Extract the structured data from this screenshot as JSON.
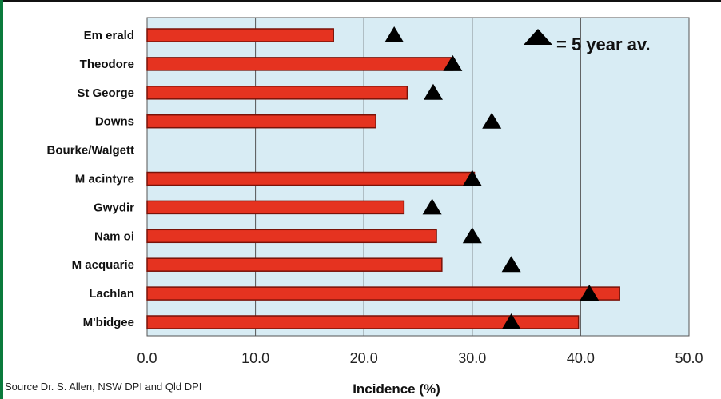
{
  "source": "Source Dr. S. Allen, NSW DPI and Qld DPI",
  "legend": {
    "marker": "triangle",
    "text": "= 5 year av."
  },
  "colors": {
    "bar": "#e53320",
    "bar_edge": "#7a1208",
    "plot_bg": "#d8ecf4",
    "grid": "#555555",
    "marker": "#000000",
    "frame": "#0a7a3c"
  },
  "chart_data": {
    "type": "bar",
    "orientation": "horizontal",
    "title": "",
    "xlabel": "Incidence (%)",
    "ylabel": "",
    "xlim": [
      0,
      50
    ],
    "xticks": [
      "0.0",
      "10.0",
      "20.0",
      "30.0",
      "40.0",
      "50.0"
    ],
    "grid": true,
    "legend_position": "top-right",
    "categories": [
      "Em erald",
      "Theodore",
      "St George",
      "Downs",
      "Bourke/Walgett",
      "M acintyre",
      "Gwydir",
      "Nam oi",
      "M acquarie",
      "Lachlan",
      "M'bidgee"
    ],
    "series": [
      {
        "name": "",
        "type": "bar",
        "values": [
          17.2,
          28.2,
          24.0,
          21.1,
          null,
          30.2,
          23.7,
          26.7,
          27.2,
          43.6,
          39.8
        ]
      },
      {
        "name": "5 year av.",
        "type": "marker",
        "values": [
          22.8,
          28.2,
          26.4,
          31.8,
          null,
          30.0,
          26.3,
          30.0,
          33.6,
          40.8,
          33.6
        ]
      }
    ]
  }
}
